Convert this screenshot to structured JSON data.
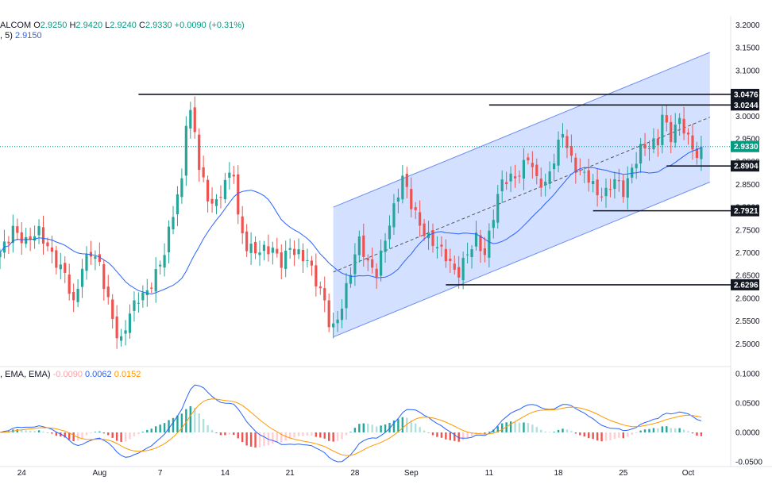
{
  "legend_main": {
    "symbol": "ALCOM",
    "o_label": "O",
    "o_value": "2.9250",
    "h_label": "H",
    "h_value": "2.9420",
    "l_label": "L",
    "l_value": "2.9240",
    "c_label": "C",
    "c_value": "2.9330",
    "change": "+0.0090 (+0.31%)"
  },
  "legend_ma": {
    "prefix": ", 5)",
    "value": "2.9150"
  },
  "legend_macd": {
    "prefix": ", EMA, EMA)",
    "hist": "-0.0090",
    "macd": "0.0062",
    "signal": "0.0152"
  },
  "colors": {
    "up": "#26a69a",
    "down": "#ef5350",
    "ma": "#2962ff",
    "channel_fill": "#2962ff",
    "macd_line": "#2962ff",
    "signal_line": "#ff9800",
    "level_line": "#131722",
    "last_price": "#089981"
  },
  "chart_data": [
    {
      "type": "candlestick",
      "ylim": [
        2.45,
        3.22
      ],
      "yticks": [
        "3.2000",
        "3.1500",
        "3.1000",
        "3.0500",
        "3.0000",
        "2.9500",
        "2.9000",
        "2.8500",
        "2.8000",
        "2.7500",
        "2.7000",
        "2.6500",
        "2.6000",
        "2.5500",
        "2.5000"
      ],
      "x_tick_labels": [
        {
          "label": "24",
          "bar": 5
        },
        {
          "label": "Aug",
          "bar": 23
        },
        {
          "label": "7",
          "bar": 37
        },
        {
          "label": "14",
          "bar": 52
        },
        {
          "label": "21",
          "bar": 67
        },
        {
          "label": "28",
          "bar": 82
        },
        {
          "label": "Sep",
          "bar": 95
        },
        {
          "label": "11",
          "bar": 113
        },
        {
          "label": "18",
          "bar": 129
        },
        {
          "label": "25",
          "bar": 144
        },
        {
          "label": "Oct",
          "bar": 159
        }
      ],
      "horizontal_levels": [
        {
          "label": "3.0476",
          "value": 3.0476,
          "from_bar": 32
        },
        {
          "label": "3.0244",
          "value": 3.0244,
          "from_bar": 113
        },
        {
          "label": "2.8904",
          "value": 2.8904,
          "from_bar": 154
        },
        {
          "label": "2.7921",
          "value": 2.7921,
          "from_bar": 137
        },
        {
          "label": "2.6296",
          "value": 2.6296,
          "from_bar": 103
        }
      ],
      "last_price": {
        "label": "2.9330",
        "value": 2.933
      },
      "channel": {
        "start_bar": 77,
        "end_bar": 164,
        "upper": [
          2.8,
          3.14
        ],
        "lower": [
          2.515,
          2.855
        ]
      },
      "anchors": [
        [
          0,
          2.7
        ],
        [
          3,
          2.76
        ],
        [
          6,
          2.72
        ],
        [
          9,
          2.74
        ],
        [
          12,
          2.7
        ],
        [
          15,
          2.66
        ],
        [
          17,
          2.58
        ],
        [
          19,
          2.66
        ],
        [
          21,
          2.7
        ],
        [
          23,
          2.68
        ],
        [
          25,
          2.6
        ],
        [
          27,
          2.52
        ],
        [
          28,
          2.5
        ],
        [
          30,
          2.56
        ],
        [
          32,
          2.6
        ],
        [
          34,
          2.62
        ],
        [
          36,
          2.66
        ],
        [
          38,
          2.7
        ],
        [
          40,
          2.78
        ],
        [
          41,
          2.82
        ],
        [
          42,
          2.85
        ],
        [
          43,
          2.99
        ],
        [
          44,
          3.01
        ],
        [
          45,
          2.97
        ],
        [
          46,
          2.9
        ],
        [
          48,
          2.82
        ],
        [
          50,
          2.8
        ],
        [
          52,
          2.85
        ],
        [
          54,
          2.88
        ],
        [
          55,
          2.78
        ],
        [
          57,
          2.72
        ],
        [
          60,
          2.7
        ],
        [
          63,
          2.7
        ],
        [
          65,
          2.68
        ],
        [
          67,
          2.72
        ],
        [
          69,
          2.7
        ],
        [
          71,
          2.68
        ],
        [
          73,
          2.63
        ],
        [
          75,
          2.59
        ],
        [
          76,
          2.55
        ],
        [
          77,
          2.54
        ],
        [
          79,
          2.59
        ],
        [
          81,
          2.66
        ],
        [
          83,
          2.72
        ],
        [
          85,
          2.67
        ],
        [
          87,
          2.66
        ],
        [
          89,
          2.74
        ],
        [
          91,
          2.8
        ],
        [
          93,
          2.86
        ],
        [
          95,
          2.8
        ],
        [
          97,
          2.76
        ],
        [
          99,
          2.74
        ],
        [
          101,
          2.72
        ],
        [
          103,
          2.69
        ],
        [
          105,
          2.65
        ],
        [
          106,
          2.65
        ],
        [
          108,
          2.7
        ],
        [
          110,
          2.74
        ],
        [
          112,
          2.7
        ],
        [
          114,
          2.78
        ],
        [
          116,
          2.85
        ],
        [
          118,
          2.86
        ],
        [
          120,
          2.88
        ],
        [
          122,
          2.92
        ],
        [
          124,
          2.86
        ],
        [
          126,
          2.84
        ],
        [
          128,
          2.9
        ],
        [
          130,
          2.97
        ],
        [
          132,
          2.91
        ],
        [
          134,
          2.88
        ],
        [
          136,
          2.86
        ],
        [
          138,
          2.82
        ],
        [
          140,
          2.83
        ],
        [
          142,
          2.87
        ],
        [
          144,
          2.84
        ],
        [
          146,
          2.88
        ],
        [
          148,
          2.92
        ],
        [
          150,
          2.93
        ],
        [
          152,
          2.95
        ],
        [
          153,
          3.01
        ],
        [
          155,
          2.96
        ],
        [
          157,
          2.99
        ],
        [
          159,
          2.94
        ],
        [
          161,
          2.91
        ],
        [
          162,
          2.933
        ]
      ],
      "ma_period": 20
    },
    {
      "type": "macd",
      "ylim": [
        -0.058,
        0.112
      ],
      "yticks": [
        "0.1000",
        "0.0500",
        "0.0000",
        "-0.0500"
      ]
    }
  ]
}
